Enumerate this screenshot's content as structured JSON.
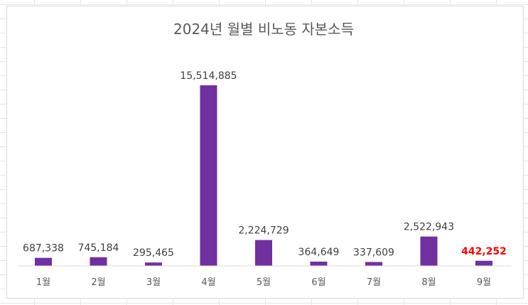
{
  "chart_data": {
    "type": "bar",
    "title": "2024년 월별 비노동 자본소득",
    "categories": [
      "1월",
      "2월",
      "3월",
      "4월",
      "5월",
      "6월",
      "7월",
      "8월",
      "9월"
    ],
    "values": [
      687338,
      745184,
      295465,
      15514885,
      2224729,
      364649,
      337609,
      2522943,
      442252
    ],
    "value_labels": [
      "687,338",
      "745,184",
      "295,465",
      "15,514,885",
      "2,224,729",
      "364,649",
      "337,609",
      "2,522,943",
      "442,252"
    ],
    "highlight_index": 8,
    "bar_color": "#7030a0",
    "highlight_label_color": "#ff0000",
    "ylim": [
      0,
      15514885
    ],
    "grid": false,
    "legend": "none"
  }
}
